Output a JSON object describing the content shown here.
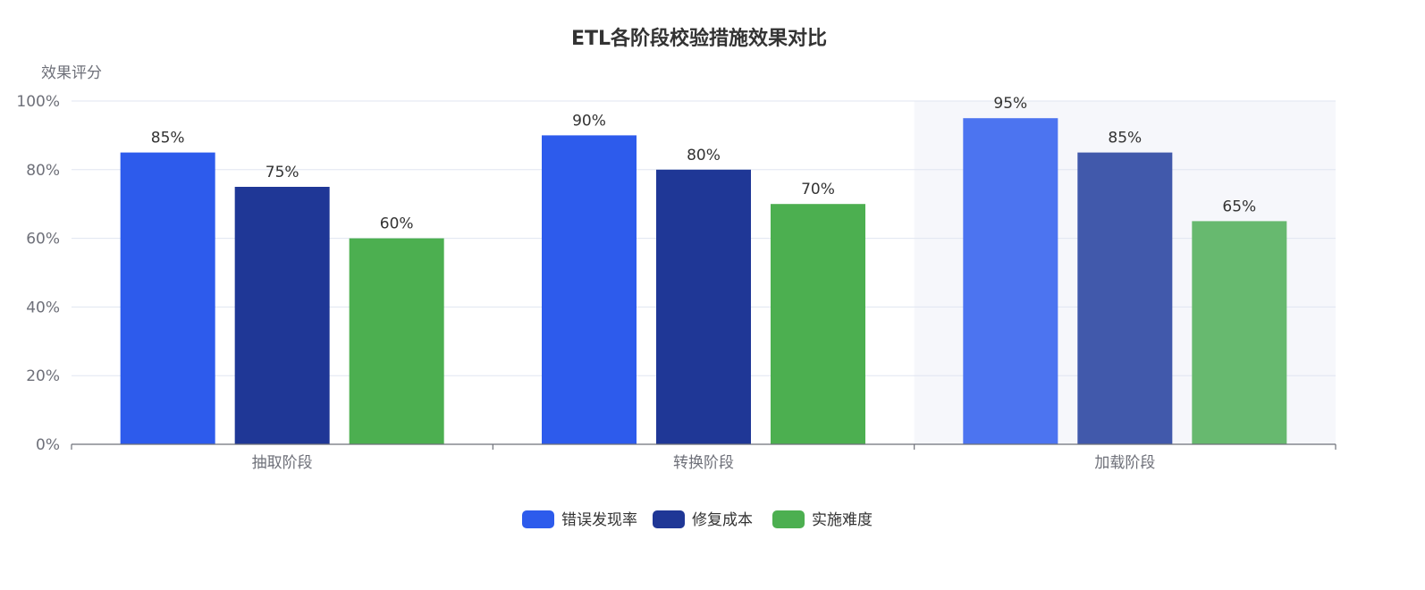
{
  "chart_data": {
    "type": "bar",
    "title": "ETL各阶段校验措施效果对比",
    "ylabel": "效果评分",
    "xlabel": "",
    "ylim": [
      0,
      100
    ],
    "y_ticks": [
      0,
      20,
      40,
      60,
      80,
      100
    ],
    "y_tick_labels": [
      "0%",
      "20%",
      "40%",
      "60%",
      "80%",
      "100%"
    ],
    "value_suffix": "%",
    "categories": [
      "抽取阶段",
      "转换阶段",
      "加载阶段"
    ],
    "highlighted_category": "加载阶段",
    "series": [
      {
        "name": "错误发现率",
        "values": [
          85,
          90,
          95
        ],
        "color": "#2d5bec"
      },
      {
        "name": "修复成本",
        "values": [
          75,
          80,
          85
        ],
        "color": "#1f3796"
      },
      {
        "name": "实施难度",
        "values": [
          60,
          70,
          65
        ],
        "color": "#4caf50"
      }
    ],
    "highlight_colors": [
      "#4c74f0",
      "#4159ab",
      "#67b96f"
    ],
    "highlight_background": "#f6f7fb",
    "grid": true,
    "legend_position": "bottom-center"
  }
}
